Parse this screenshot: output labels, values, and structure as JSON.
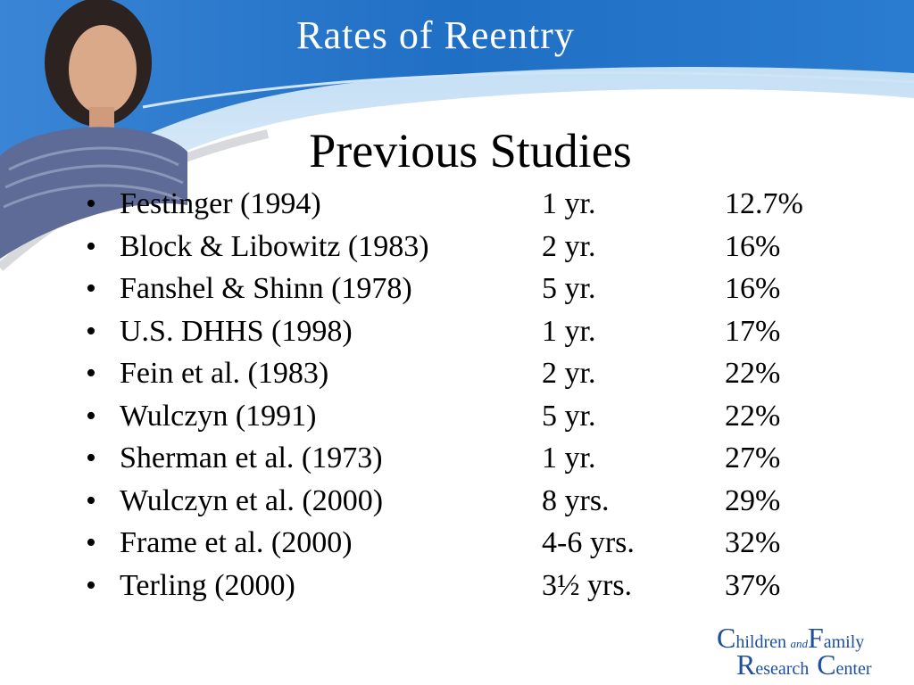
{
  "slide": {
    "title": "Rates of Reentry",
    "subtitle": "Previous Studies"
  },
  "studies": [
    {
      "name": "Festinger (1994)",
      "period": "1 yr.",
      "rate": "12.7%"
    },
    {
      "name": "Block & Libowitz (1983)",
      "period": "2 yr.",
      "rate": "16%"
    },
    {
      "name": "Fanshel & Shinn (1978)",
      "period": "5 yr.",
      "rate": "16%"
    },
    {
      "name": "U.S. DHHS (1998)",
      "period": "1 yr.",
      "rate": "17%"
    },
    {
      "name": "Fein et al. (1983)",
      "period": "2 yr.",
      "rate": "22%"
    },
    {
      "name": "Wulczyn (1991)",
      "period": "5 yr.",
      "rate": "22%"
    },
    {
      "name": "Sherman et al. (1973)",
      "period": "1 yr.",
      "rate": "27%"
    },
    {
      "name": "Wulczyn et al. (2000)",
      "period": "8 yrs.",
      "rate": "29%"
    },
    {
      "name": "Frame et al. (2000)",
      "period": "4-6 yrs.",
      "rate": "32%"
    },
    {
      "name": "Terling (2000)",
      "period": "3½ yrs.",
      "rate": "37%"
    }
  ],
  "bullet": "•",
  "logo": {
    "line1_initial": "C",
    "line1_word": "hildren",
    "line1_and": "and",
    "line1_initial2": "F",
    "line1_word2": "amily",
    "line2_initial": "R",
    "line2_word": "esearch",
    "line2_initial2": "C",
    "line2_word2": "enter"
  },
  "colors": {
    "banner_blue": "#1f6fc4",
    "banner_light": "#8fc0ea",
    "logo_blue": "#1d4f9c"
  }
}
